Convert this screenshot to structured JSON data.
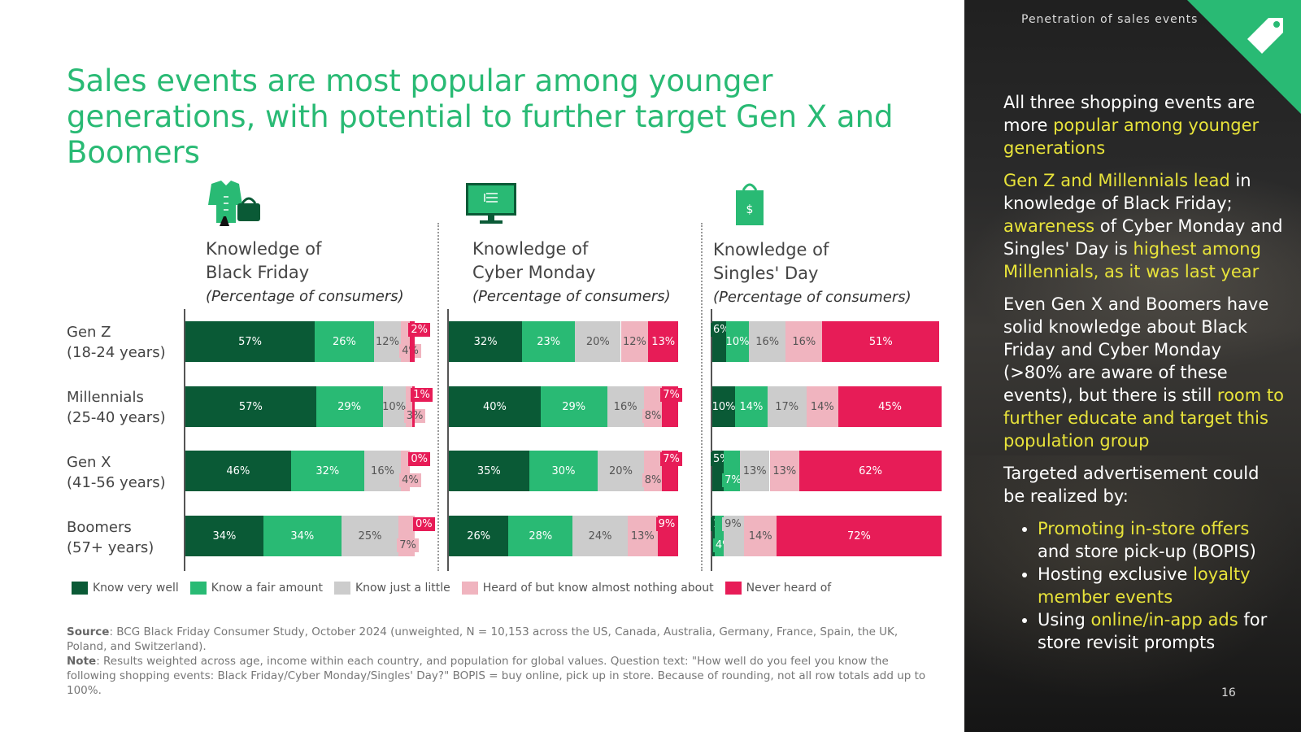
{
  "title": "Sales events are most popular among younger generations, with potential to further target Gen X and Boomers",
  "colors": {
    "very_well": "#0a5a36",
    "fair": "#29ba74",
    "little": "#cccccc",
    "heard": "#f0b4bf",
    "never": "#e71c57",
    "title": "#29ba74",
    "highlight": "#e8e33a"
  },
  "chart_data": {
    "type": "bar",
    "orientation": "horizontal-stacked",
    "categories": [
      "Gen Z (18-24 years)",
      "Millennials (25-40 years)",
      "Gen X (41-56 years)",
      "Boomers (57+ years)"
    ],
    "series_names": [
      "Know very well",
      "Know a fair amount",
      "Know just a little",
      "Heard of but know almost nothing about",
      "Never heard of"
    ],
    "panels": [
      {
        "heading": [
          "Knowledge of",
          "Black Friday"
        ],
        "subtitle": "(Percentage of consumers)",
        "icon": "clothing-bag-icon",
        "rows": [
          [
            57,
            26,
            12,
            4,
            2
          ],
          [
            57,
            29,
            10,
            3,
            1
          ],
          [
            46,
            32,
            16,
            4,
            0
          ],
          [
            34,
            34,
            25,
            7,
            0
          ]
        ]
      },
      {
        "heading": [
          "Knowledge of",
          "Cyber Monday"
        ],
        "subtitle": "(Percentage of consumers)",
        "icon": "computer-monitor-icon",
        "rows": [
          [
            32,
            23,
            20,
            12,
            13
          ],
          [
            40,
            29,
            16,
            8,
            7
          ],
          [
            35,
            30,
            20,
            8,
            7
          ],
          [
            26,
            28,
            24,
            13,
            9
          ]
        ]
      },
      {
        "heading": [
          "Knowledge of",
          "Singles' Day"
        ],
        "subtitle": "(Percentage of consumers)",
        "icon": "shopping-bag-dollar-icon",
        "rows": [
          [
            6,
            10,
            16,
            16,
            51
          ],
          [
            10,
            14,
            17,
            14,
            45
          ],
          [
            5,
            7,
            13,
            13,
            62
          ],
          [
            1,
            4,
            9,
            14,
            72
          ]
        ]
      }
    ]
  },
  "rows": [
    {
      "name": "Gen Z",
      "range": "(18-24 years)"
    },
    {
      "name": "Millennials",
      "range": "(25-40 years)"
    },
    {
      "name": "Gen X",
      "range": "(41-56 years)"
    },
    {
      "name": "Boomers",
      "range": "(57+ years)"
    }
  ],
  "source": {
    "label": "Source",
    "text": ": BCG Black Friday Consumer Study, October 2024 (unweighted, N = 10,153 across the US, Canada, Australia, Germany, France, Spain, the UK, Poland, and Switzerland)."
  },
  "note": {
    "label": "Note",
    "text": ": Results weighted across age, income within each country, and population for global values. Question text: \"How well do you feel you know the following shopping events: Black Friday/Cyber Monday/Singles' Day?\" BOPIS = buy online, pick up in store. Because of rounding, not all row totals add up to 100%."
  },
  "side": {
    "label": "Penetration of sales events",
    "p1": {
      "a": "All three shopping events are more ",
      "b": "popular among younger generations"
    },
    "p2": {
      "a": "Gen Z and Millennials lead",
      "b": " in knowledge of Black Friday; ",
      "c": "awareness",
      "d": " of Cyber Monday and Singles' Day is ",
      "e": "highest among Millennials, as it was last year"
    },
    "p3": {
      "a": "Even Gen X and Boomers have solid knowledge about Black Friday and Cyber Monday (>80% are aware of these events), but there is still ",
      "b": "room to further educate and target this population group"
    },
    "p4": "Targeted advertisement could be realized by:",
    "bullets": [
      {
        "hl": "Promoting in-store offers",
        "rest": " and store pick-up (BOPIS)"
      },
      {
        "pre": "Hosting exclusive ",
        "hl": "loyalty member events"
      },
      {
        "pre": "Using ",
        "hl": "online/in-app ads",
        "rest": " for store revisit prompts"
      }
    ],
    "page_number": "16"
  }
}
